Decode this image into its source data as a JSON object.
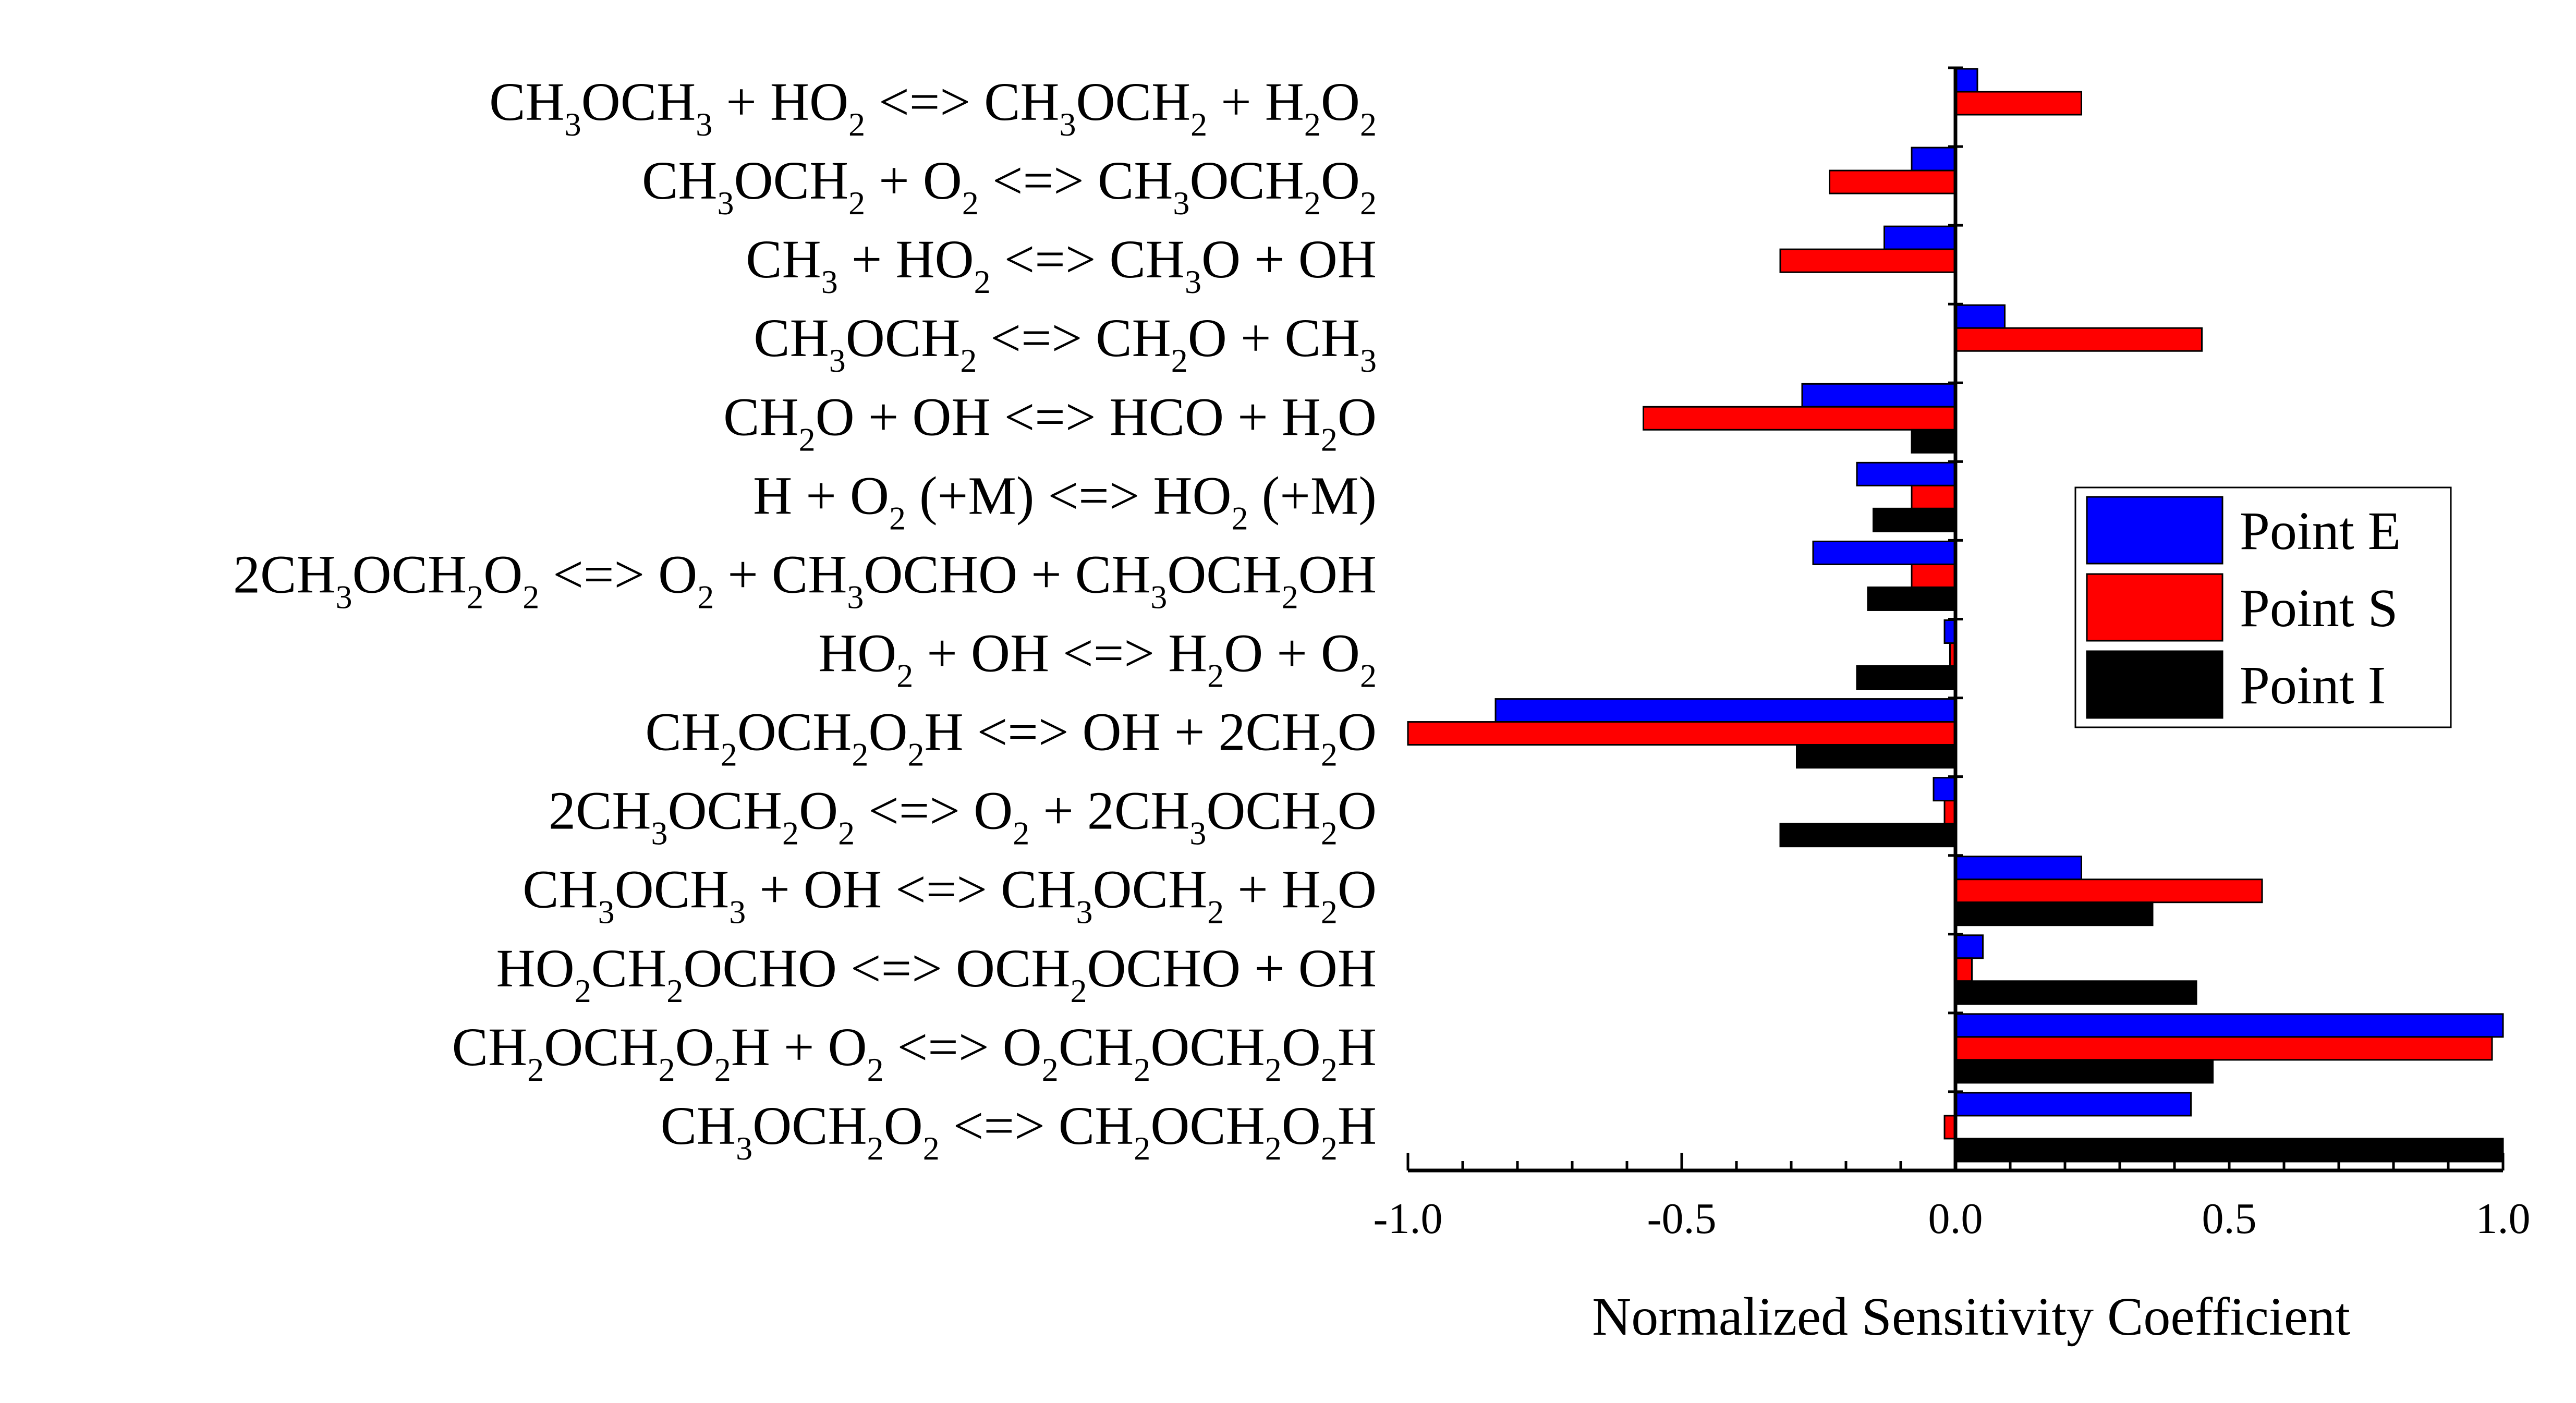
{
  "chart_data": {
    "type": "bar",
    "orientation": "horizontal",
    "xlabel": "Normalized Sensitivity Coefficient",
    "xlim": [
      -1.0,
      1.0
    ],
    "xticks": [
      "-1.0",
      "-0.5",
      "0.0",
      "0.5",
      "1.0"
    ],
    "legend_position": "right",
    "categories": [
      [
        {
          "t": "CH"
        },
        {
          "t": "3",
          "s": 1
        },
        {
          "t": "OCH"
        },
        {
          "t": "3",
          "s": 1
        },
        {
          "t": " + HO"
        },
        {
          "t": "2",
          "s": 1
        },
        {
          "t": " <=> CH"
        },
        {
          "t": "3",
          "s": 1
        },
        {
          "t": "OCH"
        },
        {
          "t": "2",
          "s": 1
        },
        {
          "t": " + H"
        },
        {
          "t": "2",
          "s": 1
        },
        {
          "t": "O"
        },
        {
          "t": "2",
          "s": 1
        }
      ],
      [
        {
          "t": "CH"
        },
        {
          "t": "3",
          "s": 1
        },
        {
          "t": "OCH"
        },
        {
          "t": "2",
          "s": 1
        },
        {
          "t": " + O"
        },
        {
          "t": "2",
          "s": 1
        },
        {
          "t": " <=> CH"
        },
        {
          "t": "3",
          "s": 1
        },
        {
          "t": "OCH"
        },
        {
          "t": "2",
          "s": 1
        },
        {
          "t": "O"
        },
        {
          "t": "2",
          "s": 1
        }
      ],
      [
        {
          "t": "CH"
        },
        {
          "t": "3",
          "s": 1
        },
        {
          "t": " + HO"
        },
        {
          "t": "2",
          "s": 1
        },
        {
          "t": " <=> CH"
        },
        {
          "t": "3",
          "s": 1
        },
        {
          "t": "O + OH"
        }
      ],
      [
        {
          "t": "CH"
        },
        {
          "t": "3",
          "s": 1
        },
        {
          "t": "OCH"
        },
        {
          "t": "2",
          "s": 1
        },
        {
          "t": " <=> CH"
        },
        {
          "t": "2",
          "s": 1
        },
        {
          "t": "O + CH"
        },
        {
          "t": "3",
          "s": 1
        }
      ],
      [
        {
          "t": "CH"
        },
        {
          "t": "2",
          "s": 1
        },
        {
          "t": "O + OH <=> HCO + H"
        },
        {
          "t": "2",
          "s": 1
        },
        {
          "t": "O"
        }
      ],
      [
        {
          "t": "H + O"
        },
        {
          "t": "2",
          "s": 1
        },
        {
          "t": " (+M) <=> HO"
        },
        {
          "t": "2",
          "s": 1
        },
        {
          "t": " (+M)"
        }
      ],
      [
        {
          "t": "2CH"
        },
        {
          "t": "3",
          "s": 1
        },
        {
          "t": "OCH"
        },
        {
          "t": "2",
          "s": 1
        },
        {
          "t": "O"
        },
        {
          "t": "2",
          "s": 1
        },
        {
          "t": " <=> O"
        },
        {
          "t": "2",
          "s": 1
        },
        {
          "t": " + CH"
        },
        {
          "t": "3",
          "s": 1
        },
        {
          "t": "OCHO + CH"
        },
        {
          "t": "3",
          "s": 1
        },
        {
          "t": "OCH"
        },
        {
          "t": "2",
          "s": 1
        },
        {
          "t": "OH"
        }
      ],
      [
        {
          "t": "HO"
        },
        {
          "t": "2",
          "s": 1
        },
        {
          "t": " + OH <=> H"
        },
        {
          "t": "2",
          "s": 1
        },
        {
          "t": "O + O"
        },
        {
          "t": "2",
          "s": 1
        }
      ],
      [
        {
          "t": "CH"
        },
        {
          "t": "2",
          "s": 1
        },
        {
          "t": "OCH"
        },
        {
          "t": "2",
          "s": 1
        },
        {
          "t": "O"
        },
        {
          "t": "2",
          "s": 1
        },
        {
          "t": "H <=> OH + 2CH"
        },
        {
          "t": "2",
          "s": 1
        },
        {
          "t": "O"
        }
      ],
      [
        {
          "t": "2CH"
        },
        {
          "t": "3",
          "s": 1
        },
        {
          "t": "OCH"
        },
        {
          "t": "2",
          "s": 1
        },
        {
          "t": "O"
        },
        {
          "t": "2",
          "s": 1
        },
        {
          "t": " <=> O"
        },
        {
          "t": "2",
          "s": 1
        },
        {
          "t": " + 2CH"
        },
        {
          "t": "3",
          "s": 1
        },
        {
          "t": "OCH"
        },
        {
          "t": "2",
          "s": 1
        },
        {
          "t": "O"
        }
      ],
      [
        {
          "t": "CH"
        },
        {
          "t": "3",
          "s": 1
        },
        {
          "t": "OCH"
        },
        {
          "t": "3",
          "s": 1
        },
        {
          "t": " + OH <=> CH"
        },
        {
          "t": "3",
          "s": 1
        },
        {
          "t": "OCH"
        },
        {
          "t": "2",
          "s": 1
        },
        {
          "t": " + H"
        },
        {
          "t": "2",
          "s": 1
        },
        {
          "t": "O"
        }
      ],
      [
        {
          "t": "HO"
        },
        {
          "t": "2",
          "s": 1
        },
        {
          "t": "CH"
        },
        {
          "t": "2",
          "s": 1
        },
        {
          "t": "OCHO <=> OCH"
        },
        {
          "t": "2",
          "s": 1
        },
        {
          "t": "OCHO + OH"
        }
      ],
      [
        {
          "t": "CH"
        },
        {
          "t": "2",
          "s": 1
        },
        {
          "t": "OCH"
        },
        {
          "t": "2",
          "s": 1
        },
        {
          "t": "O"
        },
        {
          "t": "2",
          "s": 1
        },
        {
          "t": "H + O"
        },
        {
          "t": "2",
          "s": 1
        },
        {
          "t": " <=> O"
        },
        {
          "t": "2",
          "s": 1
        },
        {
          "t": "CH"
        },
        {
          "t": "2",
          "s": 1
        },
        {
          "t": "OCH"
        },
        {
          "t": "2",
          "s": 1
        },
        {
          "t": "O"
        },
        {
          "t": "2",
          "s": 1
        },
        {
          "t": "H"
        }
      ],
      [
        {
          "t": "CH"
        },
        {
          "t": "3",
          "s": 1
        },
        {
          "t": "OCH"
        },
        {
          "t": "2",
          "s": 1
        },
        {
          "t": "O"
        },
        {
          "t": "2",
          "s": 1
        },
        {
          "t": " <=> CH"
        },
        {
          "t": "2",
          "s": 1
        },
        {
          "t": "OCH"
        },
        {
          "t": "2",
          "s": 1
        },
        {
          "t": "O"
        },
        {
          "t": "2",
          "s": 1
        },
        {
          "t": "H"
        }
      ]
    ],
    "series": [
      {
        "name": "Point E",
        "color": "#0000ff",
        "values": [
          0.04,
          -0.08,
          -0.13,
          0.09,
          -0.28,
          -0.18,
          -0.26,
          -0.02,
          -0.84,
          -0.04,
          0.23,
          0.05,
          1.0,
          0.43
        ]
      },
      {
        "name": "Point S",
        "color": "#ff0000",
        "values": [
          0.23,
          -0.23,
          -0.32,
          0.45,
          -0.57,
          -0.08,
          -0.08,
          -0.01,
          -1.0,
          -0.02,
          0.56,
          0.03,
          0.98,
          -0.02
        ]
      },
      {
        "name": "Point I",
        "color": "#000000",
        "values": [
          0.0,
          0.0,
          0.0,
          0.0,
          -0.08,
          -0.15,
          -0.16,
          -0.18,
          -0.29,
          -0.32,
          0.36,
          0.44,
          0.47,
          1.0
        ]
      }
    ]
  }
}
